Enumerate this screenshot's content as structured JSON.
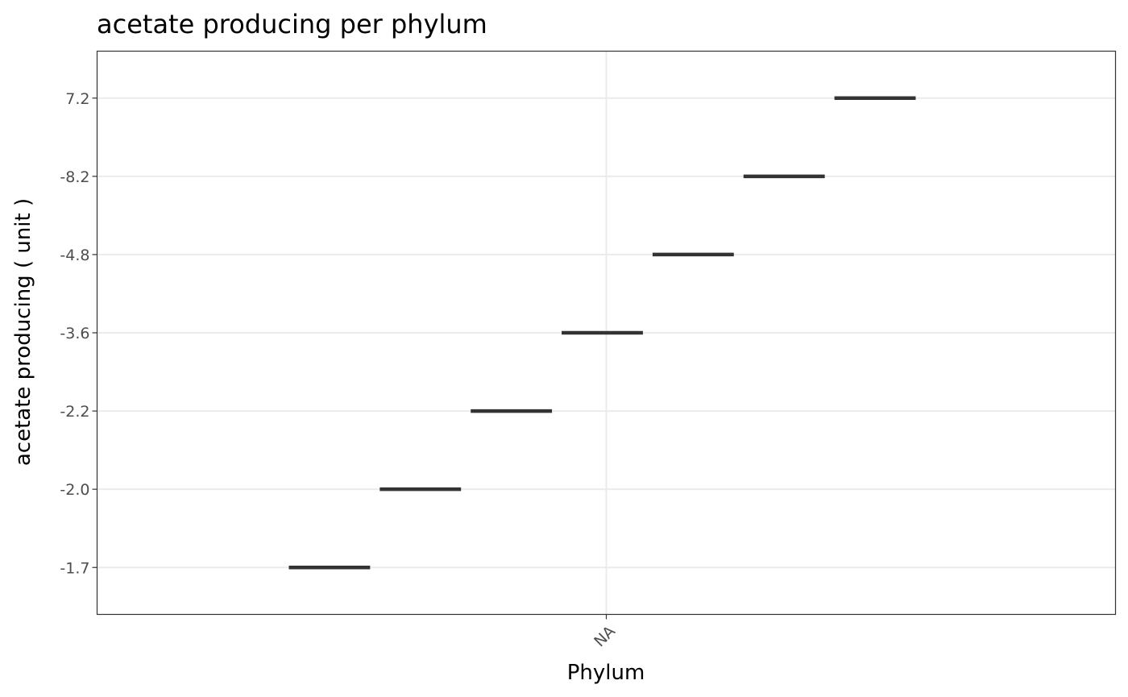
{
  "chart_data": {
    "type": "crossbar",
    "title": "acetate producing per phylum",
    "xlabel": "Phylum",
    "ylabel": "acetate producing ( unit )",
    "x_categories": [
      "NA"
    ],
    "y_tick_labels": [
      "-1.7",
      "-2.0",
      "-2.2",
      "-3.6",
      "-4.8",
      "-8.2",
      "7.2"
    ],
    "points": [
      {
        "x": "NA",
        "y": "-1.7"
      },
      {
        "x": "NA",
        "y": "-2.0"
      },
      {
        "x": "NA",
        "y": "-2.2"
      },
      {
        "x": "NA",
        "y": "-3.6"
      },
      {
        "x": "NA",
        "y": "-4.8"
      },
      {
        "x": "NA",
        "y": "-8.2"
      },
      {
        "x": "NA",
        "y": "7.2"
      }
    ],
    "grid": true,
    "legend": "none",
    "colors": {
      "mark": "#333333",
      "grid": "#ebebeb",
      "panel_border": "#333333"
    }
  }
}
